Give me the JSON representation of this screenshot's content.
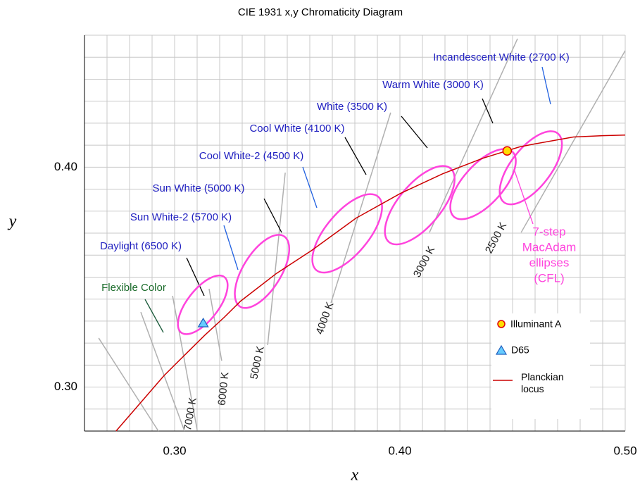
{
  "chart_data": {
    "type": "scatter",
    "title": "CIE 1931  x,y Chromaticity Diagram",
    "x_label": "x",
    "y_label": "y",
    "xlim": [
      0.26,
      0.5
    ],
    "ylim": [
      0.28,
      0.46
    ],
    "xticks": [
      0.26,
      0.28,
      {
        "value": 0.3,
        "label": "0.30"
      },
      0.32,
      0.34,
      0.36,
      0.38,
      {
        "value": 0.4,
        "label": "0.40"
      },
      0.42,
      0.44,
      0.46,
      0.48,
      {
        "value": 0.5,
        "label": "0.50"
      }
    ],
    "yticks": [
      0.28,
      {
        "value": 0.3,
        "label": "0.30"
      },
      0.32,
      0.34,
      0.36,
      0.38,
      {
        "value": 0.4,
        "label": "0.40"
      },
      0.42,
      0.44,
      0.46
    ],
    "xgrid": [
      0.27,
      0.29,
      0.31,
      0.33,
      0.35,
      0.37,
      0.39,
      0.41,
      0.43,
      0.45,
      0.47,
      0.49
    ],
    "ygrid": [
      0.29,
      0.31,
      0.33,
      0.35,
      0.37,
      0.39,
      0.41,
      0.43,
      0.45
    ],
    "grid": true,
    "series": [
      {
        "name": "Planckian locus",
        "kind": "line",
        "color": "#cc0000",
        "x": [
          0.274,
          0.285,
          0.2952,
          0.3048,
          0.3135,
          0.3221,
          0.3293,
          0.3451,
          0.3608,
          0.3805,
          0.4001,
          0.419,
          0.4369,
          0.453,
          0.4599,
          0.477,
          0.49,
          0.5
        ],
        "values": [
          0.28,
          0.293,
          0.3051,
          0.3149,
          0.3237,
          0.3318,
          0.3391,
          0.3516,
          0.3621,
          0.3768,
          0.388,
          0.397,
          0.4041,
          0.4092,
          0.4106,
          0.4137,
          0.4143,
          0.4146
        ]
      },
      {
        "name": "Illuminant A",
        "kind": "circle",
        "color": "#ffdd00",
        "edge": "#e00000",
        "x": [
          0.4476
        ],
        "values": [
          0.4074
        ]
      },
      {
        "name": "D65",
        "kind": "triangle",
        "color": "#66ccff",
        "edge": "#1f5fbf",
        "x": [
          0.3127
        ],
        "values": [
          0.329
        ]
      }
    ],
    "ellipse_color": "#ff44dd",
    "ellipses": [
      {
        "x": 0.3125,
        "y": 0.3374,
        "a": 0.0156,
        "b": 0.0069,
        "angle": -52
      },
      {
        "x": 0.3388,
        "y": 0.3526,
        "a": 0.0184,
        "b": 0.0084,
        "angle": -58
      },
      {
        "x": 0.3766,
        "y": 0.3699,
        "a": 0.0213,
        "b": 0.0094,
        "angle": -50
      },
      {
        "x": 0.4088,
        "y": 0.3827,
        "a": 0.0213,
        "b": 0.0094,
        "angle": -50
      },
      {
        "x": 0.4369,
        "y": 0.3923,
        "a": 0.0194,
        "b": 0.0088,
        "angle": -48
      },
      {
        "x": 0.4581,
        "y": 0.3997,
        "a": 0.0194,
        "b": 0.0088,
        "angle": -52
      }
    ],
    "isotherm_color": "#b0b0b0",
    "isotherms": [
      {
        "label": "2500 K",
        "x": [
          0.4538,
          0.5
        ],
        "y": [
          0.3703,
          0.453
        ]
      },
      {
        "label": "3000 K",
        "x": [
          0.4131,
          0.4522
        ],
        "y": [
          0.3703,
          0.4584
        ]
      },
      {
        "label": "4000 K",
        "x": [
          0.3694,
          0.3959
        ],
        "y": [
          0.3383,
          0.4248
        ]
      },
      {
        "label": "5000 K",
        "x": [
          0.3413,
          0.3491
        ],
        "y": [
          0.3191,
          0.3975
        ]
      },
      {
        "label": "6000 K",
        "x": [
          0.3209,
          0.3153
        ],
        "y": [
          0.312,
          0.3447
        ]
      },
      {
        "label": "7000 K",
        "x": [
          0.2991,
          0.31
        ],
        "y": [
          0.3415,
          0.2806
        ]
      },
      {
        "x": [
          0.2663,
          0.2928
        ],
        "y": [
          0.3223,
          0.28
        ]
      },
      {
        "x": [
          0.285,
          0.3044
        ],
        "y": [
          0.3341,
          0.28
        ]
      }
    ],
    "annotations": [
      {
        "text": "Incandescent White (2700 K)",
        "color": "#2020c0",
        "leader_color": "#2060e0"
      },
      {
        "text": "Warm White (3000 K)",
        "color": "#2020c0",
        "leader_color": "#000000"
      },
      {
        "text": "White (3500 K)",
        "color": "#2020c0",
        "leader_color": "#000000"
      },
      {
        "text": "Cool White (4100 K)",
        "color": "#2020c0",
        "leader_color": "#000000"
      },
      {
        "text": "Cool White-2 (4500 K)",
        "color": "#2020c0",
        "leader_color": "#2060e0"
      },
      {
        "text": "Sun White (5000 K)",
        "color": "#2020c0",
        "leader_color": "#000000"
      },
      {
        "text": "Sun White-2 (5700 K)",
        "color": "#2020c0",
        "leader_color": "#2060e0"
      },
      {
        "text": "Daylight (6500 K)",
        "color": "#2020c0",
        "leader_color": "#000000"
      },
      {
        "text": "Flexible Color",
        "color": "#1a6b2a",
        "leader_color": "#1a5a3a"
      },
      {
        "text": [
          "7-step",
          "MacAdam",
          "ellipses",
          "(CFL)"
        ],
        "color": "#ff44dd",
        "leader_color": "#ff44dd"
      }
    ]
  }
}
